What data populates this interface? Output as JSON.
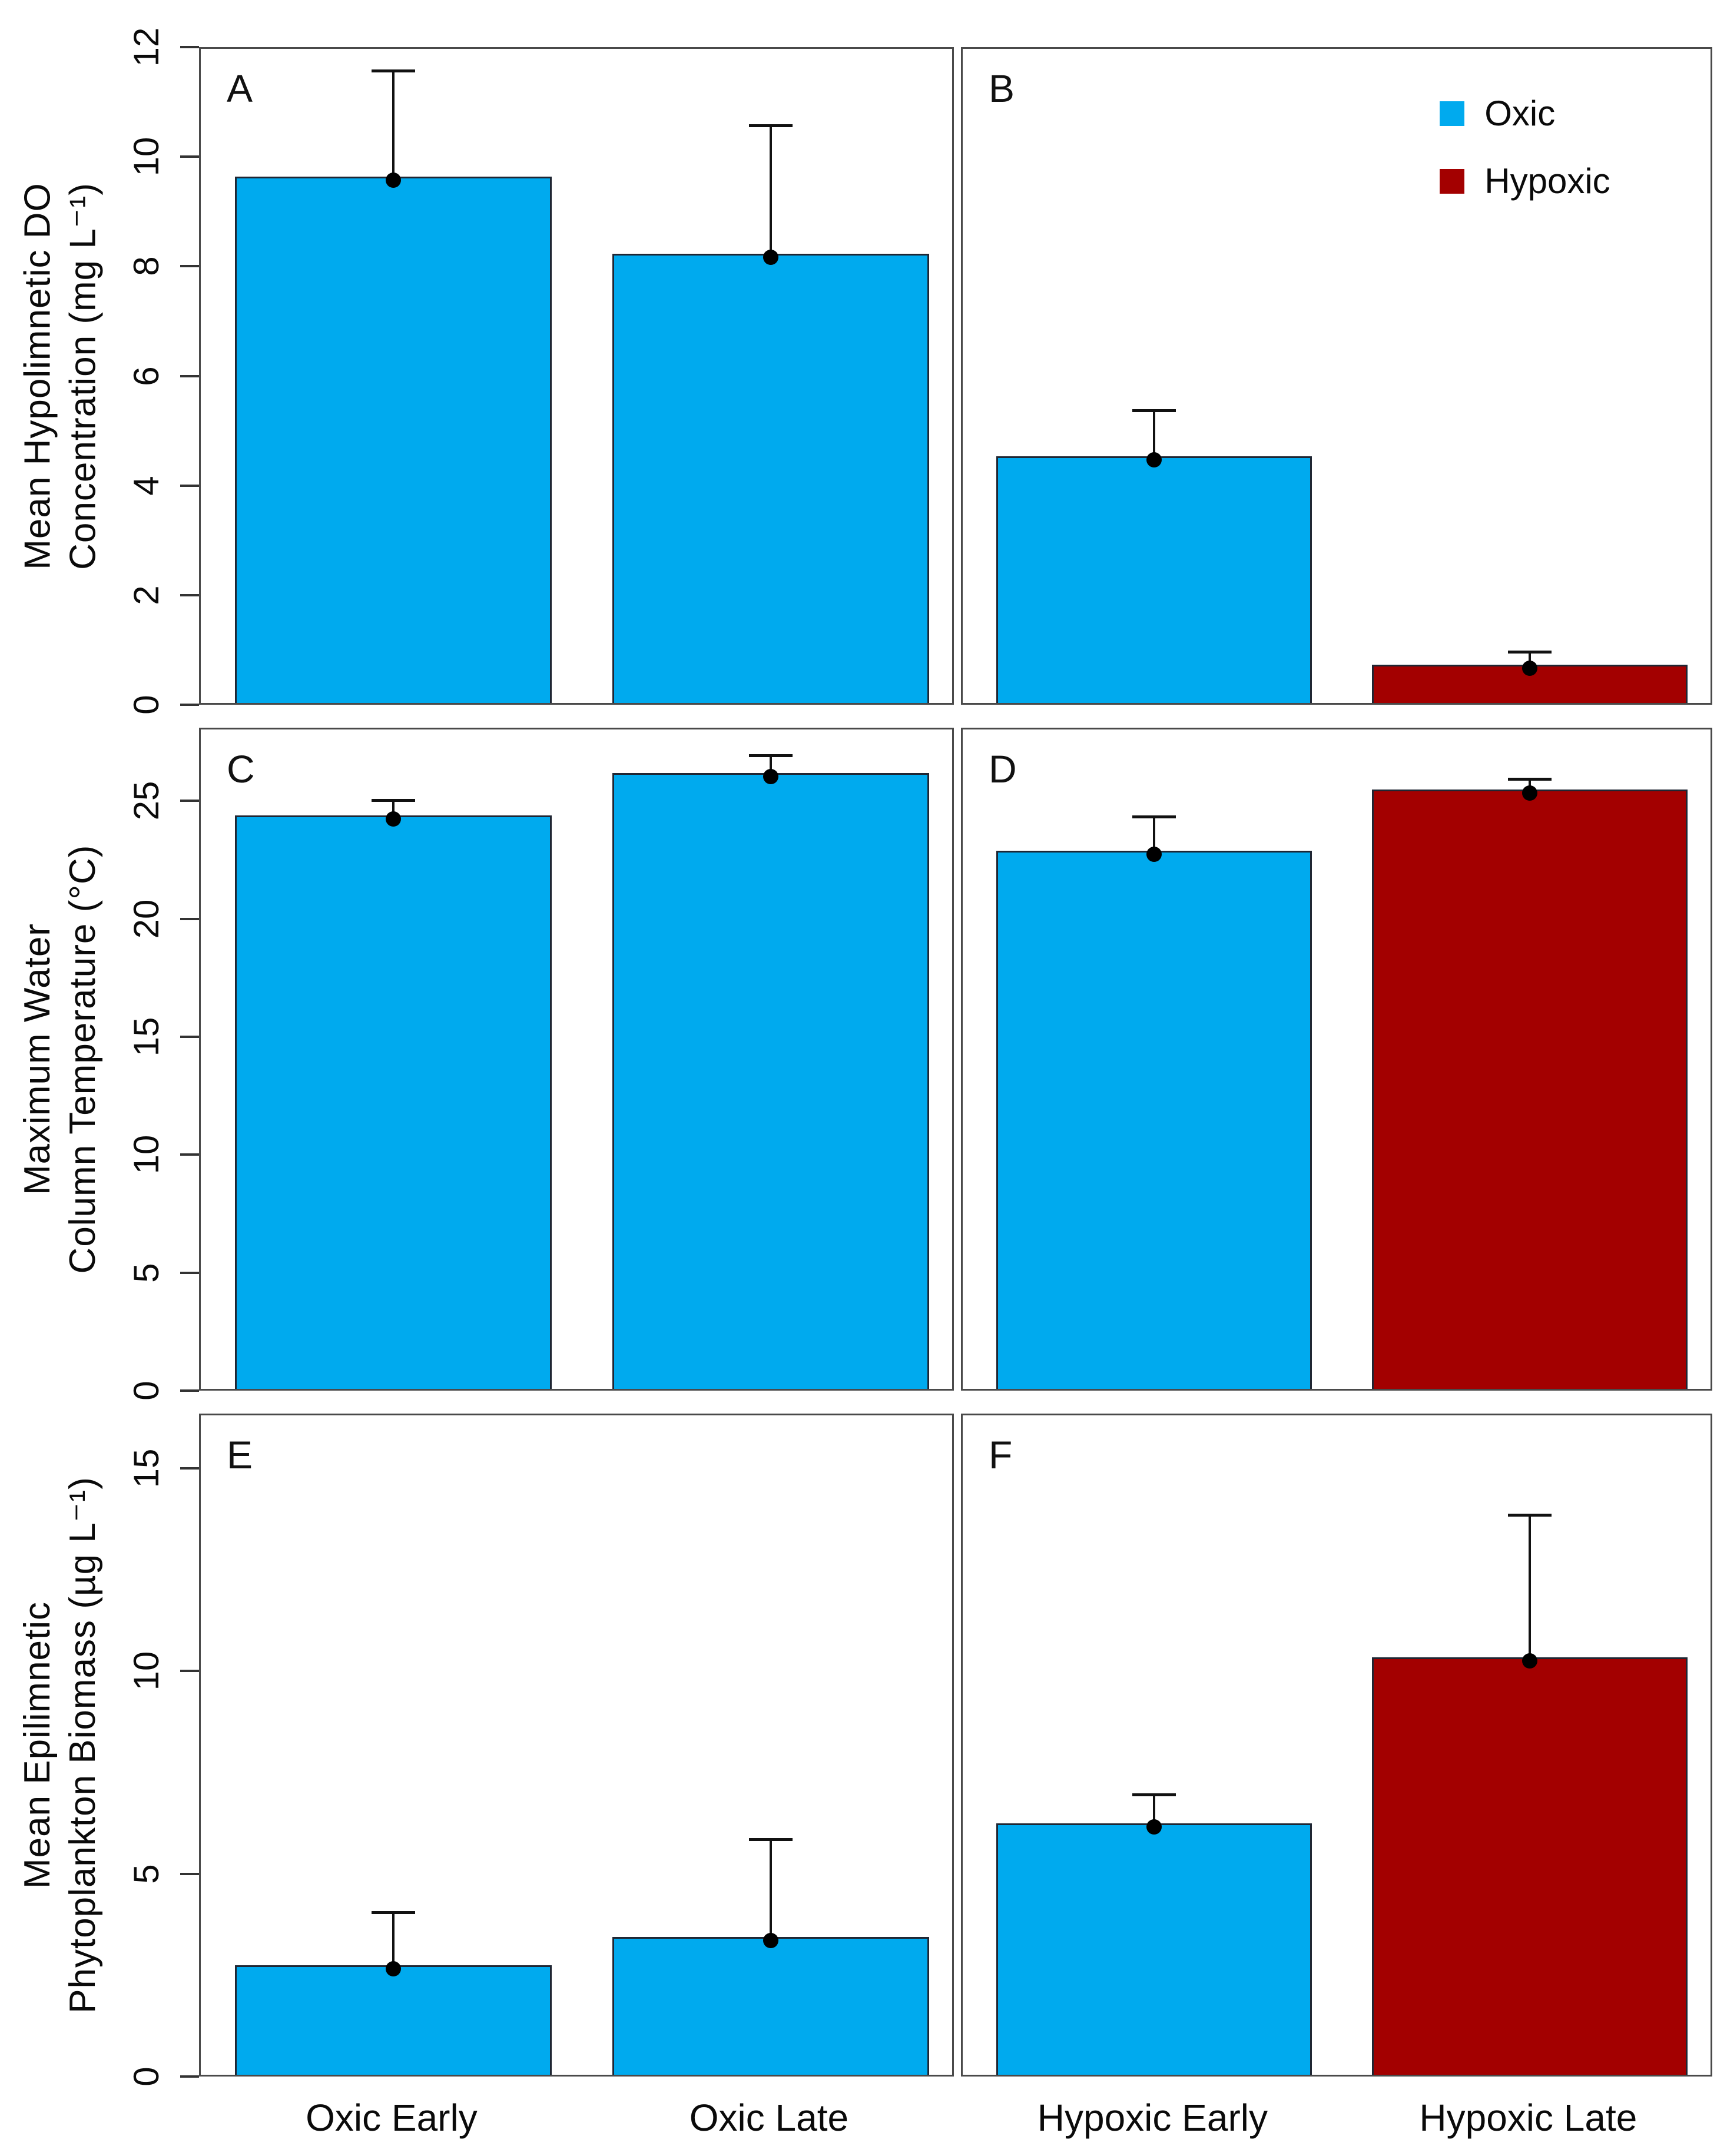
{
  "figure": {
    "colors": {
      "oxic": "#00AAEE",
      "hypoxic": "#A30000",
      "bar_border": "#1f2633",
      "panel_border": "#4a4a4a",
      "error": "#111111",
      "background": "#ffffff"
    },
    "legend": {
      "position": "top-right-of-panel-B",
      "items": [
        {
          "label": "Oxic",
          "key": "oxic"
        },
        {
          "label": "Hypoxic",
          "key": "hypoxic"
        }
      ]
    }
  },
  "chart_data": {
    "type": "bar",
    "grid": "off",
    "error_bars": "upward-only-with-point-marker",
    "rows": [
      {
        "ylabel_lines": [
          "Mean Hypolimnetic DO",
          "Concentration (mg L⁻¹)"
        ],
        "ylim": [
          0,
          12
        ],
        "yticks": [
          0,
          2,
          4,
          6,
          8,
          10,
          12
        ],
        "panels": [
          {
            "letter": "A",
            "bars": [
              {
                "category": "Oxic Early",
                "color_key": "oxic",
                "value": 9.6,
                "upper": 11.6
              },
              {
                "category": "Oxic Late",
                "color_key": "oxic",
                "value": 8.2,
                "upper": 10.6
              }
            ]
          },
          {
            "letter": "B",
            "show_legend": true,
            "bars": [
              {
                "category": "Hypoxic Early",
                "color_key": "oxic",
                "value": 4.5,
                "upper": 5.4
              },
              {
                "category": "Hypoxic Late",
                "color_key": "hypoxic",
                "value": 0.7,
                "upper": 1.0
              }
            ]
          }
        ]
      },
      {
        "ylabel_lines": [
          "Maximum Water",
          "Column Temperature (°C)"
        ],
        "ylim": [
          0,
          28.1
        ],
        "yticks": [
          0,
          5,
          10,
          15,
          20,
          25
        ],
        "panels": [
          {
            "letter": "C",
            "bars": [
              {
                "category": "Oxic Early",
                "color_key": "oxic",
                "value": 24.3,
                "upper": 25.1
              },
              {
                "category": "Oxic Late",
                "color_key": "oxic",
                "value": 26.1,
                "upper": 27.0
              }
            ]
          },
          {
            "letter": "D",
            "bars": [
              {
                "category": "Hypoxic Early",
                "color_key": "oxic",
                "value": 22.8,
                "upper": 24.4
              },
              {
                "category": "Hypoxic Late",
                "color_key": "hypoxic",
                "value": 25.4,
                "upper": 26.0
              }
            ]
          }
        ]
      },
      {
        "ylabel_lines": [
          "Mean Epilimnetic",
          "Phytoplankton Biomass (µg L⁻¹)"
        ],
        "ylim": [
          0,
          16.35
        ],
        "yticks": [
          0,
          5,
          10,
          15
        ],
        "show_x_labels": true,
        "panels": [
          {
            "letter": "E",
            "bars": [
              {
                "category": "Oxic Early",
                "color_key": "oxic",
                "value": 2.7,
                "upper": 4.1
              },
              {
                "category": "Oxic Late",
                "color_key": "oxic",
                "value": 3.4,
                "upper": 5.9
              }
            ]
          },
          {
            "letter": "F",
            "bars": [
              {
                "category": "Hypoxic Early",
                "color_key": "oxic",
                "value": 6.2,
                "upper": 7.0
              },
              {
                "category": "Hypoxic Late",
                "color_key": "hypoxic",
                "value": 10.3,
                "upper": 13.9
              }
            ]
          }
        ]
      }
    ]
  }
}
